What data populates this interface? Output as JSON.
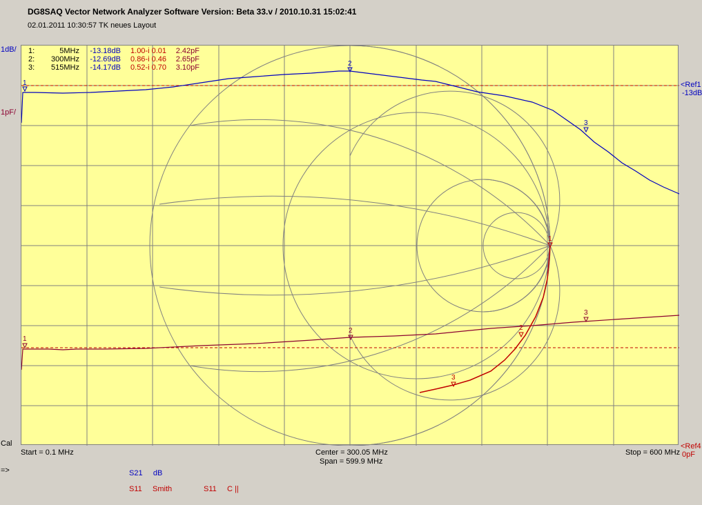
{
  "header": {
    "title": "DG8SAQ Vector Network Analyzer Software   Version:  Beta 33.v / 2010.10.31 15:02:41",
    "subtitle": "02.01.2011    10:30:57    TK  neues Layout"
  },
  "left_axis": {
    "top_label": "1dB/",
    "second_label": "1pF/",
    "bottom_label": "Cal"
  },
  "right_axis": {
    "ref1_label": "<Ref1",
    "ref1_value": "-13dB",
    "ref4_label": "<Ref4",
    "ref4_value": "0pF"
  },
  "markers_table": [
    {
      "id": "1:",
      "freq": "5MHz",
      "s21": "-13.18dB",
      "s11": "1.00-i 0.01",
      "cap": "2.42pF"
    },
    {
      "id": "2:",
      "freq": "300MHz",
      "s21": "-12.69dB",
      "s11": "0.86-i 0.46",
      "cap": "2.65pF"
    },
    {
      "id": "3:",
      "freq": "515MHz",
      "s21": "-14.17dB",
      "s11": "0.52-i 0.70",
      "cap": "3.10pF"
    }
  ],
  "footer": {
    "start": "Start = 0.1 MHz",
    "center": "Center = 300.05 MHz",
    "span": "Span = 599.9 MHz",
    "stop": "Stop = 600 MHz",
    "arrow": "=>"
  },
  "trace_legend": [
    {
      "param": "S21",
      "format": "dB",
      "color": "#0000c0"
    },
    {
      "param": "S11",
      "format": "Smith",
      "color": "#c00000"
    },
    {
      "param": "S11",
      "format": "C ||",
      "color": "#c00000"
    }
  ],
  "marker_labels": {
    "m1": "1",
    "m2": "2",
    "m3": "3"
  },
  "colors": {
    "plot_bg": "#ffff99",
    "grid": "#808080",
    "s21_trace": "#0000c0",
    "smith_trace": "#c00000",
    "cap_trace": "#8b0030",
    "ref_line": "#c00000"
  }
}
